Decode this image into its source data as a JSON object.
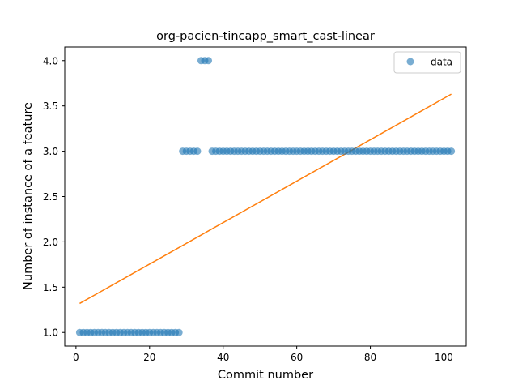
{
  "chart_data": {
    "type": "scatter",
    "title": "org-pacien-tincapp_smart_cast-linear",
    "xlabel": "Commit number",
    "ylabel": "Number of instance of a feature",
    "xlim": [
      -3.05,
      106.05
    ],
    "ylim": [
      0.85,
      4.15
    ],
    "xticks": [
      0,
      20,
      40,
      60,
      80,
      100
    ],
    "xtick_labels": [
      "0",
      "20",
      "40",
      "60",
      "80",
      "100"
    ],
    "yticks": [
      1.0,
      1.5,
      2.0,
      2.5,
      3.0,
      3.5,
      4.0
    ],
    "ytick_labels": [
      "1.0",
      "1.5",
      "2.0",
      "2.5",
      "3.0",
      "3.5",
      "4.0"
    ],
    "grid": false,
    "legend_placement": "top-right",
    "series": [
      {
        "name": "data",
        "kind": "scatter",
        "color": "#1f77b4",
        "points": [
          [
            1,
            1
          ],
          [
            2,
            1
          ],
          [
            3,
            1
          ],
          [
            4,
            1
          ],
          [
            5,
            1
          ],
          [
            6,
            1
          ],
          [
            7,
            1
          ],
          [
            8,
            1
          ],
          [
            9,
            1
          ],
          [
            10,
            1
          ],
          [
            11,
            1
          ],
          [
            12,
            1
          ],
          [
            13,
            1
          ],
          [
            14,
            1
          ],
          [
            15,
            1
          ],
          [
            16,
            1
          ],
          [
            17,
            1
          ],
          [
            18,
            1
          ],
          [
            19,
            1
          ],
          [
            20,
            1
          ],
          [
            21,
            1
          ],
          [
            22,
            1
          ],
          [
            23,
            1
          ],
          [
            24,
            1
          ],
          [
            25,
            1
          ],
          [
            26,
            1
          ],
          [
            27,
            1
          ],
          [
            28,
            1
          ],
          [
            29,
            3
          ],
          [
            30,
            3
          ],
          [
            31,
            3
          ],
          [
            32,
            3
          ],
          [
            33,
            3
          ],
          [
            34,
            4
          ],
          [
            35,
            4
          ],
          [
            36,
            4
          ],
          [
            37,
            3
          ],
          [
            38,
            3
          ],
          [
            39,
            3
          ],
          [
            40,
            3
          ],
          [
            41,
            3
          ],
          [
            42,
            3
          ],
          [
            43,
            3
          ],
          [
            44,
            3
          ],
          [
            45,
            3
          ],
          [
            46,
            3
          ],
          [
            47,
            3
          ],
          [
            48,
            3
          ],
          [
            49,
            3
          ],
          [
            50,
            3
          ],
          [
            51,
            3
          ],
          [
            52,
            3
          ],
          [
            53,
            3
          ],
          [
            54,
            3
          ],
          [
            55,
            3
          ],
          [
            56,
            3
          ],
          [
            57,
            3
          ],
          [
            58,
            3
          ],
          [
            59,
            3
          ],
          [
            60,
            3
          ],
          [
            61,
            3
          ],
          [
            62,
            3
          ],
          [
            63,
            3
          ],
          [
            64,
            3
          ],
          [
            65,
            3
          ],
          [
            66,
            3
          ],
          [
            67,
            3
          ],
          [
            68,
            3
          ],
          [
            69,
            3
          ],
          [
            70,
            3
          ],
          [
            71,
            3
          ],
          [
            72,
            3
          ],
          [
            73,
            3
          ],
          [
            74,
            3
          ],
          [
            75,
            3
          ],
          [
            76,
            3
          ],
          [
            77,
            3
          ],
          [
            78,
            3
          ],
          [
            79,
            3
          ],
          [
            80,
            3
          ],
          [
            81,
            3
          ],
          [
            82,
            3
          ],
          [
            83,
            3
          ],
          [
            84,
            3
          ],
          [
            85,
            3
          ],
          [
            86,
            3
          ],
          [
            87,
            3
          ],
          [
            88,
            3
          ],
          [
            89,
            3
          ],
          [
            90,
            3
          ],
          [
            91,
            3
          ],
          [
            92,
            3
          ],
          [
            93,
            3
          ],
          [
            94,
            3
          ],
          [
            95,
            3
          ],
          [
            96,
            3
          ],
          [
            97,
            3
          ],
          [
            98,
            3
          ],
          [
            99,
            3
          ],
          [
            100,
            3
          ],
          [
            101,
            3
          ],
          [
            102,
            3
          ]
        ]
      },
      {
        "kind": "line",
        "color": "#ff7f0e",
        "points": [
          [
            1,
            1.32
          ],
          [
            102,
            3.63
          ]
        ]
      }
    ]
  }
}
